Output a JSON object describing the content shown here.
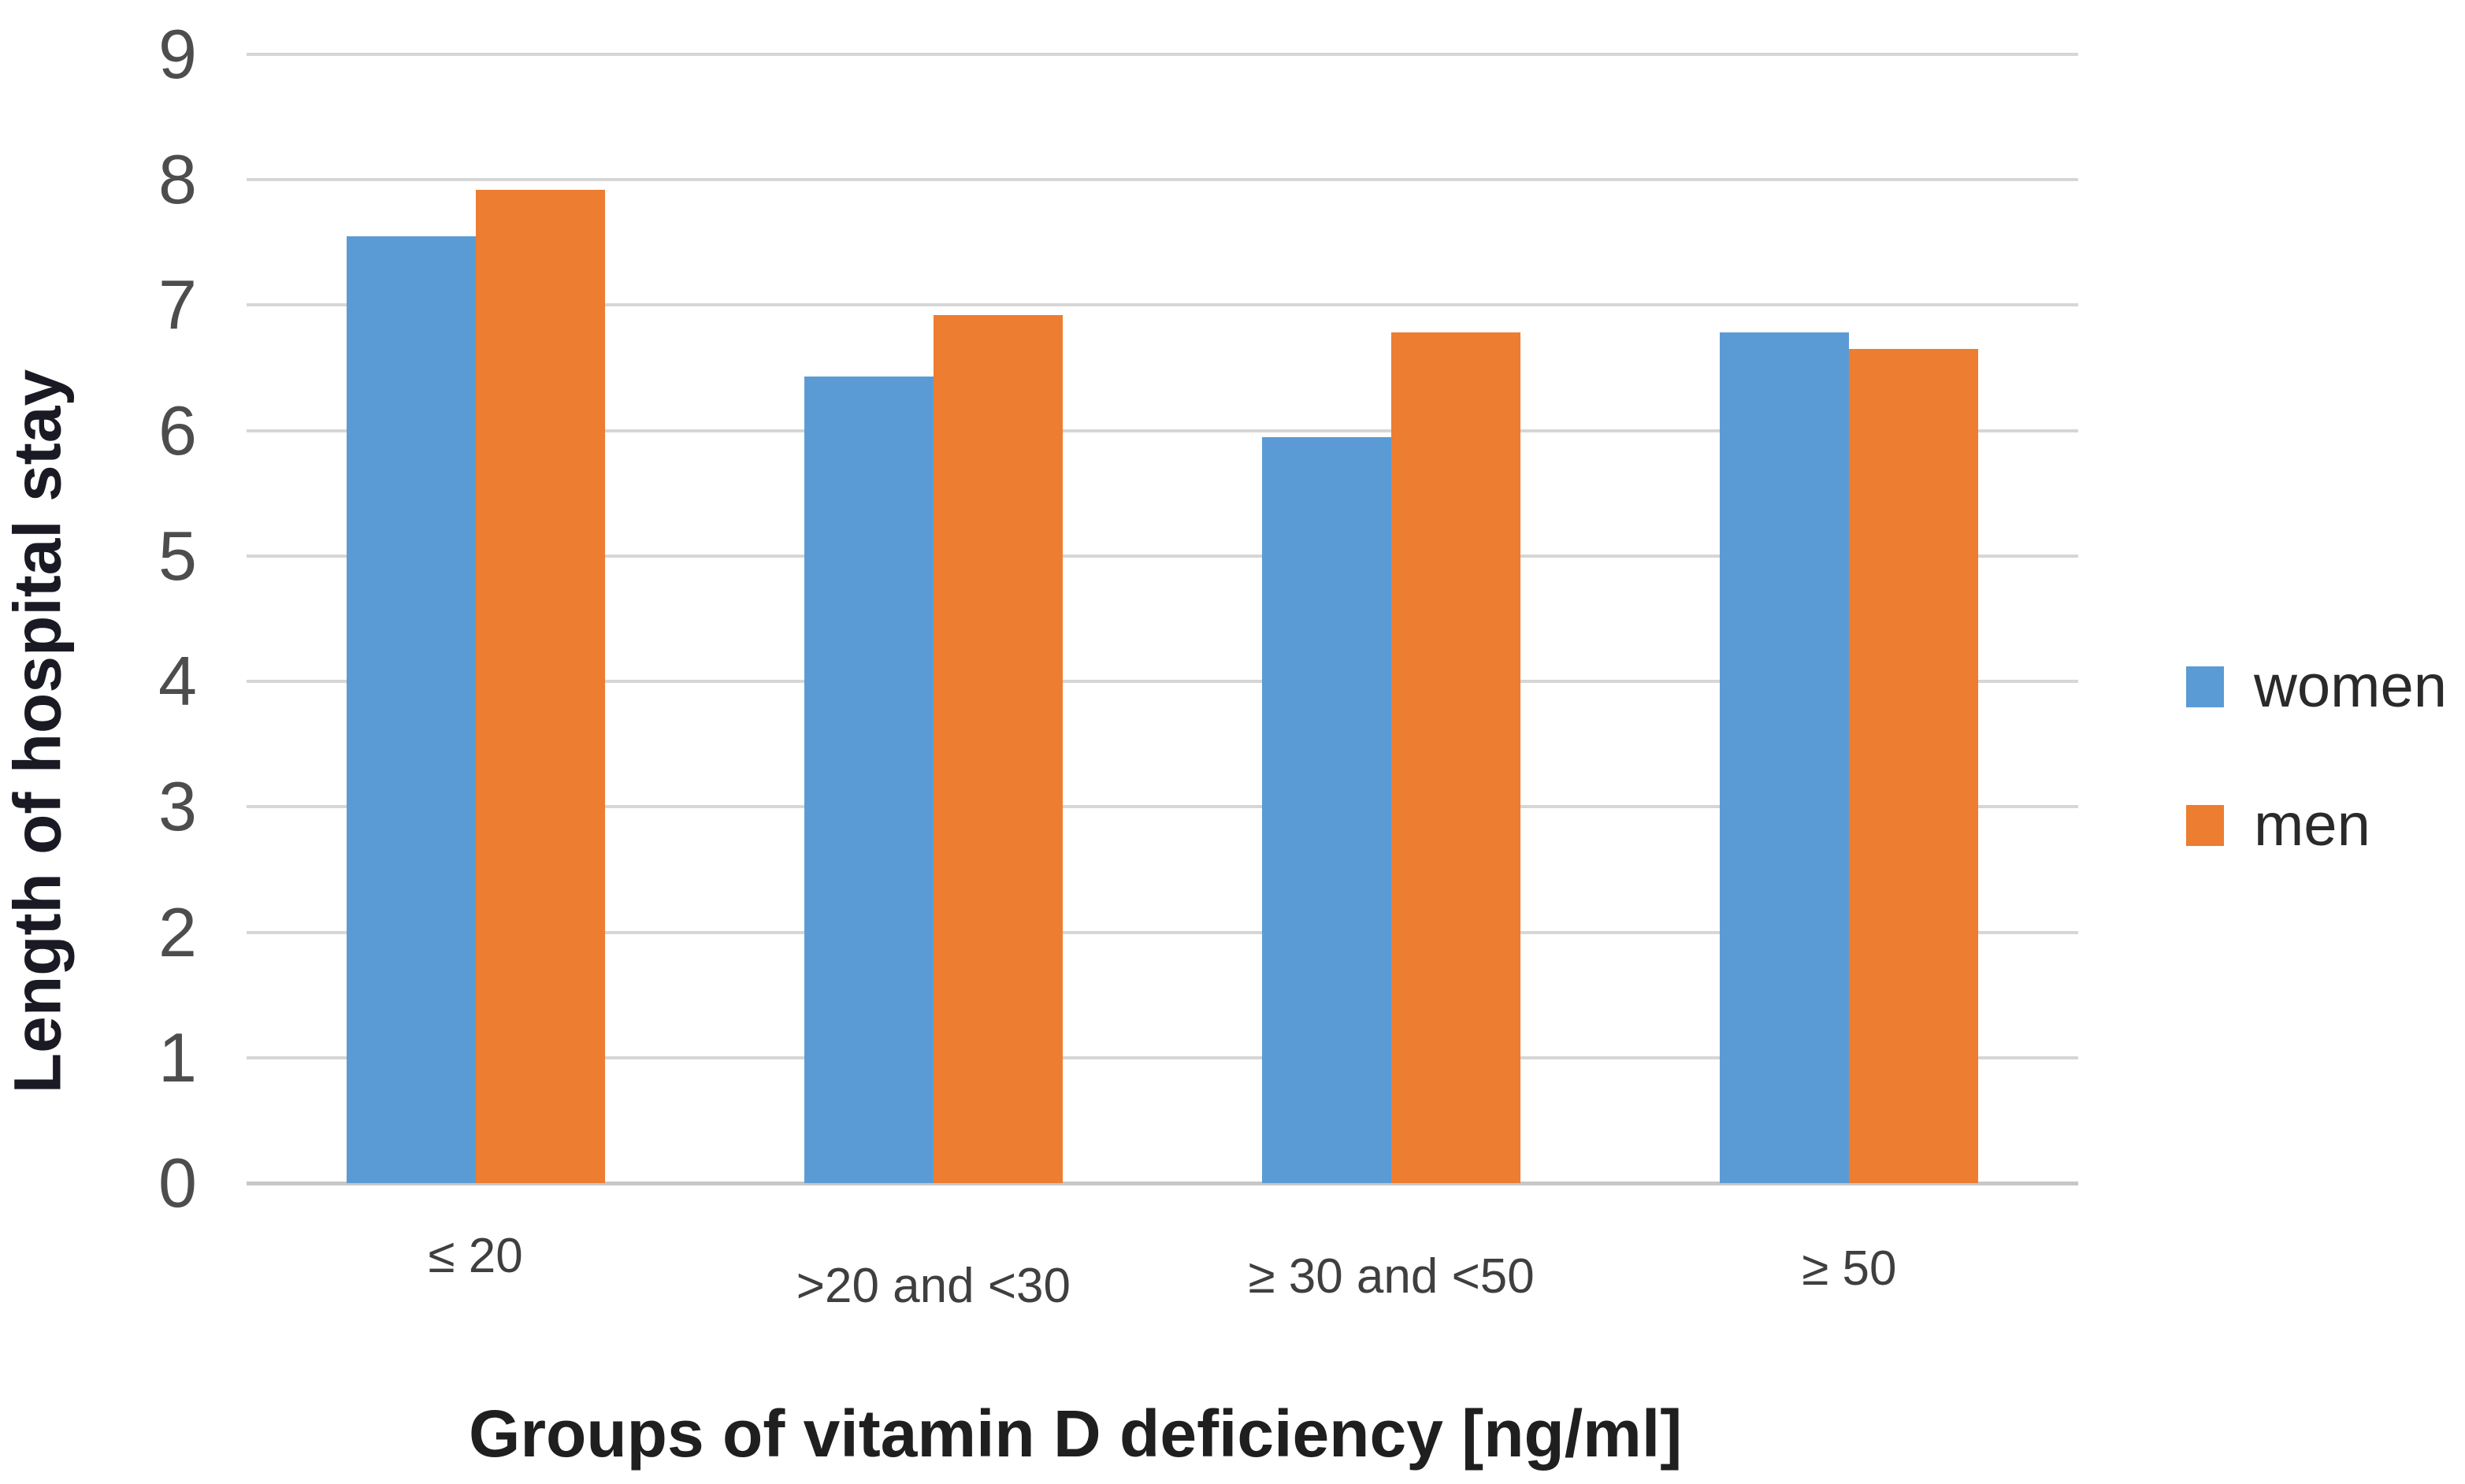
{
  "chart_data": {
    "type": "bar",
    "categories": [
      "≤ 20",
      ">20 and <30",
      "≥ 30 and <50",
      "≥ 50"
    ],
    "series": [
      {
        "name": "women",
        "color": "#5B9BD5",
        "values": [
          7.55,
          6.43,
          5.95,
          6.78
        ]
      },
      {
        "name": "men",
        "color": "#ED7D31",
        "values": [
          7.92,
          6.92,
          6.78,
          6.65
        ]
      }
    ],
    "title": "",
    "xlabel": "Groups of vitamin D deficiency [ng/ml]",
    "ylabel": "Length of hospital stay",
    "ylim": [
      0,
      9
    ],
    "yticks": [
      0,
      1,
      2,
      3,
      4,
      5,
      6,
      7,
      8,
      9
    ],
    "grid": true,
    "gridline_color": "#d6d6d6",
    "legend_position": "right"
  }
}
